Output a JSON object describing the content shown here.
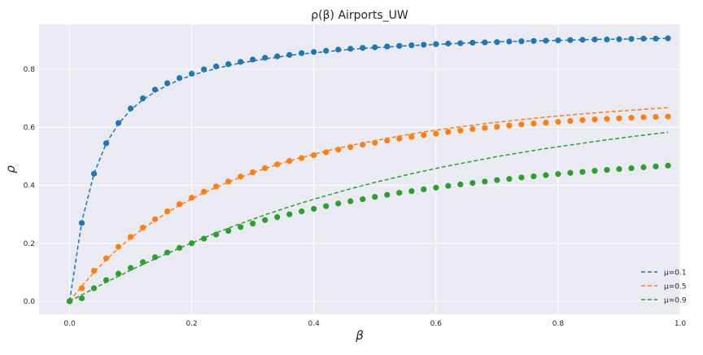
{
  "chart_data": {
    "type": "line",
    "title": "ρ(β) Airports_UW",
    "xlabel": "β",
    "ylabel": "ρ",
    "xlim": [
      -0.05,
      1.0
    ],
    "ylim": [
      -0.045,
      0.955
    ],
    "xticks": [
      0.0,
      0.2,
      0.4,
      0.6,
      0.8,
      1.0
    ],
    "xtick_labels": [
      "0.0",
      "0.2",
      "0.4",
      "0.6",
      "0.8",
      "1.0"
    ],
    "yticks": [
      0.0,
      0.2,
      0.4,
      0.6,
      0.8
    ],
    "ytick_labels": [
      "0.0",
      "0.2",
      "0.4",
      "0.6",
      "0.8"
    ],
    "grid": true,
    "legend_position": "lower-right",
    "x": [
      0.0,
      0.02,
      0.04,
      0.06,
      0.08,
      0.1,
      0.12,
      0.14,
      0.16,
      0.18,
      0.2,
      0.22,
      0.24,
      0.26,
      0.28,
      0.3,
      0.32,
      0.34,
      0.36,
      0.38,
      0.4,
      0.42,
      0.44,
      0.46,
      0.48,
      0.5,
      0.52,
      0.54,
      0.56,
      0.58,
      0.6,
      0.62,
      0.64,
      0.66,
      0.68,
      0.7,
      0.72,
      0.74,
      0.76,
      0.78,
      0.8,
      0.82,
      0.84,
      0.86,
      0.88,
      0.9,
      0.92,
      0.94,
      0.96,
      0.98
    ],
    "series": [
      {
        "name": "μ=0.1",
        "color": "#1f77b4",
        "curve": [
          0.0,
          0.275,
          0.44,
          0.545,
          0.612,
          0.66,
          0.695,
          0.722,
          0.745,
          0.764,
          0.779,
          0.792,
          0.803,
          0.813,
          0.822,
          0.829,
          0.836,
          0.842,
          0.848,
          0.853,
          0.857,
          0.861,
          0.865,
          0.869,
          0.872,
          0.875,
          0.877,
          0.88,
          0.882,
          0.884,
          0.886,
          0.888,
          0.89,
          0.892,
          0.893,
          0.895,
          0.896,
          0.897,
          0.898,
          0.899,
          0.9,
          0.901,
          0.902,
          0.903,
          0.904,
          0.904,
          0.905,
          0.906,
          0.906,
          0.907
        ],
        "points": [
          0.0,
          0.27,
          0.44,
          0.545,
          0.615,
          0.665,
          0.7,
          0.73,
          0.752,
          0.77,
          0.785,
          0.8,
          0.81,
          0.818,
          0.826,
          0.834,
          0.84,
          0.845,
          0.85,
          0.856,
          0.86,
          0.864,
          0.868,
          0.871,
          0.874,
          0.876,
          0.879,
          0.881,
          0.883,
          0.885,
          0.887,
          0.889,
          0.89,
          0.892,
          0.893,
          0.894,
          0.896,
          0.897,
          0.898,
          0.899,
          0.9,
          0.901,
          0.902,
          0.903,
          0.903,
          0.904,
          0.905,
          0.906,
          0.906,
          0.907
        ]
      },
      {
        "name": "μ=0.5",
        "color": "#ff7f0e",
        "curve": [
          0.0,
          0.052,
          0.1,
          0.143,
          0.183,
          0.218,
          0.25,
          0.279,
          0.306,
          0.331,
          0.353,
          0.374,
          0.393,
          0.411,
          0.428,
          0.443,
          0.458,
          0.471,
          0.484,
          0.496,
          0.507,
          0.518,
          0.528,
          0.537,
          0.546,
          0.554,
          0.562,
          0.57,
          0.577,
          0.584,
          0.59,
          0.596,
          0.602,
          0.607,
          0.613,
          0.618,
          0.622,
          0.627,
          0.631,
          0.635,
          0.639,
          0.643,
          0.646,
          0.65,
          0.653,
          0.656,
          0.659,
          0.662,
          0.665,
          0.668
        ],
        "points": [
          0.0,
          0.045,
          0.105,
          0.148,
          0.188,
          0.222,
          0.254,
          0.283,
          0.31,
          0.335,
          0.357,
          0.378,
          0.396,
          0.413,
          0.43,
          0.445,
          0.459,
          0.472,
          0.484,
          0.494,
          0.504,
          0.514,
          0.523,
          0.532,
          0.54,
          0.547,
          0.554,
          0.561,
          0.567,
          0.573,
          0.578,
          0.584,
          0.589,
          0.594,
          0.598,
          0.602,
          0.606,
          0.61,
          0.613,
          0.616,
          0.619,
          0.622,
          0.625,
          0.627,
          0.629,
          0.631,
          0.633,
          0.635,
          0.636,
          0.637
        ]
      },
      {
        "name": "μ=0.9",
        "color": "#2ca02c",
        "curve": [
          0.0,
          0.022,
          0.044,
          0.066,
          0.086,
          0.107,
          0.127,
          0.146,
          0.165,
          0.183,
          0.201,
          0.219,
          0.236,
          0.252,
          0.268,
          0.283,
          0.298,
          0.312,
          0.326,
          0.339,
          0.352,
          0.364,
          0.376,
          0.388,
          0.399,
          0.41,
          0.42,
          0.43,
          0.44,
          0.449,
          0.458,
          0.467,
          0.475,
          0.483,
          0.491,
          0.499,
          0.506,
          0.513,
          0.52,
          0.527,
          0.533,
          0.539,
          0.545,
          0.551,
          0.557,
          0.562,
          0.568,
          0.573,
          0.578,
          0.583
        ],
        "points": [
          0.0,
          0.01,
          0.045,
          0.073,
          0.095,
          0.115,
          0.135,
          0.152,
          0.168,
          0.184,
          0.2,
          0.216,
          0.23,
          0.243,
          0.256,
          0.268,
          0.28,
          0.29,
          0.3,
          0.31,
          0.319,
          0.328,
          0.337,
          0.345,
          0.352,
          0.36,
          0.367,
          0.374,
          0.38,
          0.386,
          0.392,
          0.398,
          0.403,
          0.408,
          0.413,
          0.418,
          0.422,
          0.427,
          0.431,
          0.435,
          0.439,
          0.443,
          0.446,
          0.45,
          0.453,
          0.456,
          0.459,
          0.462,
          0.465,
          0.468
        ]
      }
    ]
  }
}
